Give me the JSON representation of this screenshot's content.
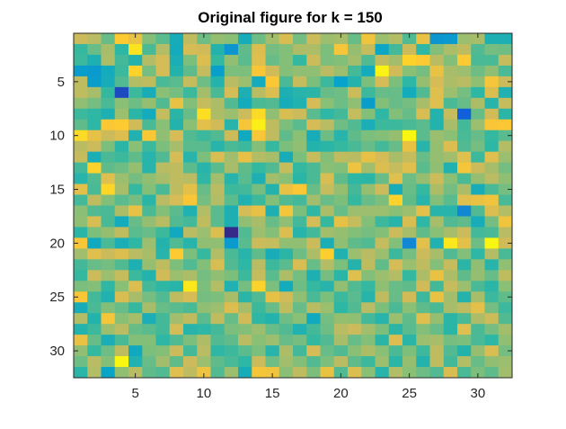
{
  "chart_data": {
    "type": "heatmap",
    "title": "Original figure for k = 150",
    "rows": 32,
    "cols": 32,
    "x_range": [
      0.5,
      32.5
    ],
    "y_range": [
      0.5,
      32.5
    ],
    "y_direction": "reverse",
    "x_ticks": [
      5,
      10,
      15,
      20,
      25,
      30
    ],
    "y_ticks": [
      5,
      10,
      15,
      20,
      25,
      30
    ],
    "colormap": "parula",
    "colormap_stops": [
      "#352a87",
      "#0f5cdd",
      "#1481d6",
      "#06a4ca",
      "#2eb7a4",
      "#87bf77",
      "#d1bb59",
      "#fec832",
      "#f9fb0e"
    ],
    "value_range": [
      0,
      1
    ],
    "value_scale": "normalized color level (no colorbar shown)",
    "values": [
      [
        0.74,
        0.71,
        0.58,
        0.88,
        0.82,
        0.62,
        0.56,
        0.43,
        0.72,
        0.59,
        0.65,
        0.63,
        0.43,
        0.59,
        0.67,
        0.77,
        0.6,
        0.74,
        0.66,
        0.68,
        0.58,
        0.84,
        0.66,
        0.7,
        0.55,
        0.82,
        0.32,
        0.34,
        0.66,
        0.68,
        0.45,
        0.45
      ],
      [
        0.51,
        0.58,
        0.68,
        0.5,
        0.94,
        0.54,
        0.7,
        0.42,
        0.76,
        0.75,
        0.47,
        0.32,
        0.57,
        0.78,
        0.6,
        0.62,
        0.69,
        0.69,
        0.61,
        0.85,
        0.65,
        0.73,
        0.39,
        0.53,
        0.74,
        0.5,
        0.62,
        0.69,
        0.72,
        0.55,
        0.6,
        0.59
      ],
      [
        0.52,
        0.45,
        0.69,
        0.53,
        0.47,
        0.7,
        0.76,
        0.44,
        0.61,
        0.78,
        0.51,
        0.64,
        0.56,
        0.79,
        0.58,
        0.62,
        0.51,
        0.74,
        0.61,
        0.62,
        0.67,
        0.55,
        0.72,
        0.67,
        0.9,
        0.88,
        0.71,
        0.62,
        0.88,
        0.54,
        0.54,
        0.73
      ],
      [
        0.35,
        0.34,
        0.42,
        0.52,
        0.9,
        0.6,
        0.76,
        0.47,
        0.57,
        0.73,
        0.36,
        0.61,
        0.61,
        0.86,
        0.75,
        0.62,
        0.64,
        0.64,
        0.71,
        0.66,
        0.53,
        0.42,
        0.98,
        0.75,
        0.63,
        0.6,
        0.82,
        0.68,
        0.66,
        0.59,
        0.64,
        0.54
      ],
      [
        0.72,
        0.35,
        0.43,
        0.55,
        0.7,
        0.72,
        0.54,
        0.56,
        0.73,
        0.59,
        0.47,
        0.71,
        0.66,
        0.42,
        0.87,
        0.54,
        0.73,
        0.61,
        0.52,
        0.37,
        0.47,
        0.61,
        0.76,
        0.61,
        0.5,
        0.65,
        0.76,
        0.69,
        0.71,
        0.64,
        0.85,
        0.74
      ],
      [
        0.72,
        0.68,
        0.51,
        0.08,
        0.52,
        0.43,
        0.63,
        0.6,
        0.52,
        0.67,
        0.54,
        0.76,
        0.45,
        0.71,
        0.78,
        0.45,
        0.48,
        0.49,
        0.58,
        0.59,
        0.74,
        0.52,
        0.58,
        0.58,
        0.42,
        0.55,
        0.79,
        0.66,
        0.6,
        0.5,
        0.78,
        0.46
      ],
      [
        0.64,
        0.6,
        0.54,
        0.63,
        0.59,
        0.65,
        0.55,
        0.82,
        0.62,
        0.73,
        0.69,
        0.55,
        0.42,
        0.54,
        0.55,
        0.43,
        0.46,
        0.76,
        0.63,
        0.59,
        0.64,
        0.35,
        0.62,
        0.58,
        0.6,
        0.68,
        0.79,
        0.54,
        0.58,
        0.69,
        0.48,
        0.73
      ],
      [
        0.52,
        0.5,
        0.45,
        0.66,
        0.49,
        0.42,
        0.73,
        0.49,
        0.58,
        0.93,
        0.69,
        0.66,
        0.74,
        0.92,
        0.64,
        0.77,
        0.74,
        0.56,
        0.5,
        0.53,
        0.73,
        0.62,
        0.5,
        0.62,
        0.58,
        0.77,
        0.47,
        0.73,
        0.14,
        0.58,
        0.75,
        0.49
      ],
      [
        0.57,
        0.5,
        0.87,
        0.88,
        0.75,
        0.54,
        0.63,
        0.47,
        0.63,
        0.8,
        0.75,
        0.48,
        0.85,
        0.97,
        0.72,
        0.61,
        0.56,
        0.76,
        0.71,
        0.59,
        0.55,
        0.44,
        0.52,
        0.52,
        0.54,
        0.56,
        0.47,
        0.68,
        0.53,
        0.66,
        0.86,
        0.87
      ],
      [
        0.92,
        0.81,
        0.74,
        0.78,
        0.46,
        0.87,
        0.64,
        0.76,
        0.55,
        0.52,
        0.55,
        0.74,
        0.41,
        0.86,
        0.72,
        0.57,
        0.63,
        0.43,
        0.59,
        0.48,
        0.57,
        0.61,
        0.62,
        0.65,
        0.99,
        0.56,
        0.66,
        0.63,
        0.54,
        0.58,
        0.51,
        0.56
      ],
      [
        0.71,
        0.74,
        0.61,
        0.49,
        0.63,
        0.52,
        0.61,
        0.68,
        0.56,
        0.56,
        0.48,
        0.54,
        0.52,
        0.62,
        0.51,
        0.61,
        0.64,
        0.47,
        0.49,
        0.51,
        0.54,
        0.58,
        0.53,
        0.58,
        0.82,
        0.48,
        0.65,
        0.78,
        0.55,
        0.6,
        0.5,
        0.7
      ],
      [
        0.73,
        0.44,
        0.54,
        0.52,
        0.57,
        0.48,
        0.55,
        0.76,
        0.48,
        0.61,
        0.77,
        0.67,
        0.81,
        0.7,
        0.68,
        0.43,
        0.61,
        0.73,
        0.62,
        0.72,
        0.71,
        0.81,
        0.76,
        0.68,
        0.73,
        0.58,
        0.65,
        0.67,
        0.79,
        0.52,
        0.79,
        0.66
      ],
      [
        0.53,
        0.9,
        0.57,
        0.59,
        0.65,
        0.48,
        0.71,
        0.72,
        0.56,
        0.48,
        0.56,
        0.68,
        0.57,
        0.51,
        0.55,
        0.73,
        0.51,
        0.54,
        0.63,
        0.62,
        0.83,
        0.67,
        0.78,
        0.73,
        0.79,
        0.56,
        0.64,
        0.46,
        0.85,
        0.74,
        0.68,
        0.6
      ],
      [
        0.48,
        0.55,
        0.79,
        0.66,
        0.6,
        0.64,
        0.68,
        0.72,
        0.71,
        0.5,
        0.67,
        0.48,
        0.56,
        0.45,
        0.67,
        0.63,
        0.49,
        0.54,
        0.77,
        0.57,
        0.5,
        0.49,
        0.58,
        0.79,
        0.59,
        0.65,
        0.74,
        0.63,
        0.54,
        0.65,
        0.71,
        0.64
      ],
      [
        0.8,
        0.54,
        0.91,
        0.68,
        0.51,
        0.62,
        0.54,
        0.72,
        0.8,
        0.58,
        0.71,
        0.52,
        0.53,
        0.6,
        0.47,
        0.82,
        0.87,
        0.58,
        0.73,
        0.65,
        0.53,
        0.65,
        0.74,
        0.43,
        0.58,
        0.51,
        0.69,
        0.6,
        0.69,
        0.43,
        0.54,
        0.6
      ],
      [
        0.53,
        0.72,
        0.62,
        0.56,
        0.6,
        0.49,
        0.71,
        0.76,
        0.86,
        0.6,
        0.7,
        0.56,
        0.46,
        0.52,
        0.62,
        0.55,
        0.53,
        0.67,
        0.58,
        0.61,
        0.51,
        0.58,
        0.61,
        0.9,
        0.57,
        0.48,
        0.62,
        0.56,
        0.79,
        0.82,
        0.84,
        0.54
      ],
      [
        0.63,
        0.55,
        0.54,
        0.69,
        0.82,
        0.54,
        0.62,
        0.56,
        0.46,
        0.7,
        0.56,
        0.45,
        0.76,
        0.81,
        0.45,
        0.85,
        0.61,
        0.5,
        0.69,
        0.58,
        0.66,
        0.66,
        0.66,
        0.63,
        0.66,
        0.8,
        0.48,
        0.48,
        0.27,
        0.55,
        0.78,
        0.7
      ],
      [
        0.64,
        0.77,
        0.54,
        0.42,
        0.58,
        0.65,
        0.71,
        0.55,
        0.53,
        0.72,
        0.56,
        0.45,
        0.64,
        0.68,
        0.58,
        0.64,
        0.53,
        0.76,
        0.51,
        0.81,
        0.73,
        0.62,
        0.52,
        0.48,
        0.77,
        0.5,
        0.68,
        0.55,
        0.57,
        0.43,
        0.6,
        0.84
      ],
      [
        0.49,
        0.61,
        0.65,
        0.72,
        0.56,
        0.58,
        0.52,
        0.41,
        0.71,
        0.66,
        0.78,
        0.0,
        0.55,
        0.66,
        0.62,
        0.78,
        0.48,
        0.53,
        0.67,
        0.65,
        0.62,
        0.6,
        0.62,
        0.74,
        0.68,
        0.57,
        0.63,
        0.68,
        0.74,
        0.53,
        0.54,
        0.71
      ],
      [
        0.86,
        0.41,
        0.54,
        0.44,
        0.5,
        0.66,
        0.47,
        0.55,
        0.48,
        0.64,
        0.64,
        0.34,
        0.56,
        0.74,
        0.73,
        0.64,
        0.64,
        0.74,
        0.44,
        0.64,
        0.57,
        0.55,
        0.73,
        0.62,
        0.27,
        0.8,
        0.46,
        0.95,
        0.8,
        0.59,
        0.99,
        0.75
      ],
      [
        0.67,
        0.79,
        0.74,
        0.78,
        0.71,
        0.68,
        0.48,
        0.88,
        0.61,
        0.51,
        0.7,
        0.54,
        0.48,
        0.57,
        0.43,
        0.49,
        0.59,
        0.69,
        0.89,
        0.46,
        0.66,
        0.71,
        0.66,
        0.52,
        0.6,
        0.74,
        0.68,
        0.55,
        0.62,
        0.5,
        0.7,
        0.54
      ],
      [
        0.53,
        0.58,
        0.6,
        0.55,
        0.45,
        0.65,
        0.72,
        0.61,
        0.55,
        0.62,
        0.77,
        0.55,
        0.5,
        0.71,
        0.52,
        0.56,
        0.77,
        0.58,
        0.7,
        0.61,
        0.47,
        0.72,
        0.57,
        0.76,
        0.66,
        0.72,
        0.62,
        0.73,
        0.49,
        0.64,
        0.48,
        0.64
      ],
      [
        0.51,
        0.74,
        0.66,
        0.73,
        0.52,
        0.47,
        0.75,
        0.66,
        0.69,
        0.6,
        0.64,
        0.61,
        0.52,
        0.73,
        0.56,
        0.69,
        0.6,
        0.45,
        0.6,
        0.49,
        0.79,
        0.62,
        0.66,
        0.7,
        0.51,
        0.69,
        0.82,
        0.69,
        0.57,
        0.65,
        0.58,
        0.72
      ],
      [
        0.61,
        0.62,
        0.5,
        0.63,
        0.78,
        0.53,
        0.5,
        0.48,
        0.95,
        0.61,
        0.7,
        0.46,
        0.6,
        0.9,
        0.61,
        0.42,
        0.59,
        0.51,
        0.48,
        0.64,
        0.55,
        0.51,
        0.64,
        0.58,
        0.57,
        0.75,
        0.53,
        0.73,
        0.66,
        0.54,
        0.49,
        0.63
      ],
      [
        0.86,
        0.53,
        0.46,
        0.77,
        0.68,
        0.6,
        0.55,
        0.72,
        0.76,
        0.6,
        0.61,
        0.68,
        0.49,
        0.55,
        0.81,
        0.75,
        0.64,
        0.54,
        0.61,
        0.52,
        0.56,
        0.48,
        0.72,
        0.58,
        0.75,
        0.52,
        0.82,
        0.67,
        0.47,
        0.68,
        0.52,
        0.57
      ],
      [
        0.43,
        0.54,
        0.62,
        0.58,
        0.51,
        0.68,
        0.58,
        0.56,
        0.54,
        0.64,
        0.66,
        0.78,
        0.68,
        0.52,
        0.58,
        0.72,
        0.58,
        0.71,
        0.66,
        0.5,
        0.55,
        0.71,
        0.61,
        0.54,
        0.63,
        0.57,
        0.54,
        0.68,
        0.72,
        0.8,
        0.6,
        0.52
      ],
      [
        0.7,
        0.47,
        0.85,
        0.63,
        0.68,
        0.44,
        0.53,
        0.67,
        0.72,
        0.56,
        0.72,
        0.58,
        0.75,
        0.5,
        0.47,
        0.59,
        0.63,
        0.41,
        0.6,
        0.65,
        0.64,
        0.53,
        0.48,
        0.66,
        0.57,
        0.79,
        0.65,
        0.49,
        0.54,
        0.69,
        0.74,
        0.55
      ],
      [
        0.47,
        0.52,
        0.66,
        0.71,
        0.58,
        0.56,
        0.53,
        0.76,
        0.48,
        0.5,
        0.53,
        0.61,
        0.62,
        0.66,
        0.58,
        0.55,
        0.46,
        0.53,
        0.59,
        0.71,
        0.74,
        0.67,
        0.61,
        0.49,
        0.56,
        0.62,
        0.58,
        0.49,
        0.79,
        0.54,
        0.6,
        0.67
      ],
      [
        0.82,
        0.58,
        0.44,
        0.54,
        0.62,
        0.62,
        0.5,
        0.55,
        0.61,
        0.69,
        0.55,
        0.57,
        0.71,
        0.63,
        0.66,
        0.58,
        0.6,
        0.51,
        0.55,
        0.68,
        0.58,
        0.62,
        0.49,
        0.78,
        0.49,
        0.66,
        0.68,
        0.6,
        0.61,
        0.54,
        0.5,
        0.64
      ],
      [
        0.64,
        0.51,
        0.59,
        0.72,
        0.41,
        0.61,
        0.62,
        0.74,
        0.53,
        0.71,
        0.5,
        0.52,
        0.56,
        0.61,
        0.48,
        0.69,
        0.53,
        0.76,
        0.58,
        0.55,
        0.63,
        0.69,
        0.63,
        0.54,
        0.61,
        0.52,
        0.72,
        0.55,
        0.47,
        0.65,
        0.77,
        0.6
      ],
      [
        0.59,
        0.71,
        0.62,
        0.99,
        0.46,
        0.58,
        0.67,
        0.57,
        0.74,
        0.66,
        0.57,
        0.54,
        0.5,
        0.74,
        0.59,
        0.67,
        0.62,
        0.55,
        0.61,
        0.71,
        0.57,
        0.52,
        0.66,
        0.49,
        0.65,
        0.47,
        0.72,
        0.53,
        0.7,
        0.58,
        0.64,
        0.66
      ],
      [
        0.49,
        0.7,
        0.38,
        0.64,
        0.71,
        0.57,
        0.55,
        0.79,
        0.72,
        0.83,
        0.55,
        0.66,
        0.43,
        0.85,
        0.84,
        0.63,
        0.72,
        0.61,
        0.82,
        0.55,
        0.78,
        0.63,
        0.48,
        0.7,
        0.63,
        0.59,
        0.55,
        0.77,
        0.54,
        0.61,
        0.57,
        0.67
      ]
    ]
  }
}
